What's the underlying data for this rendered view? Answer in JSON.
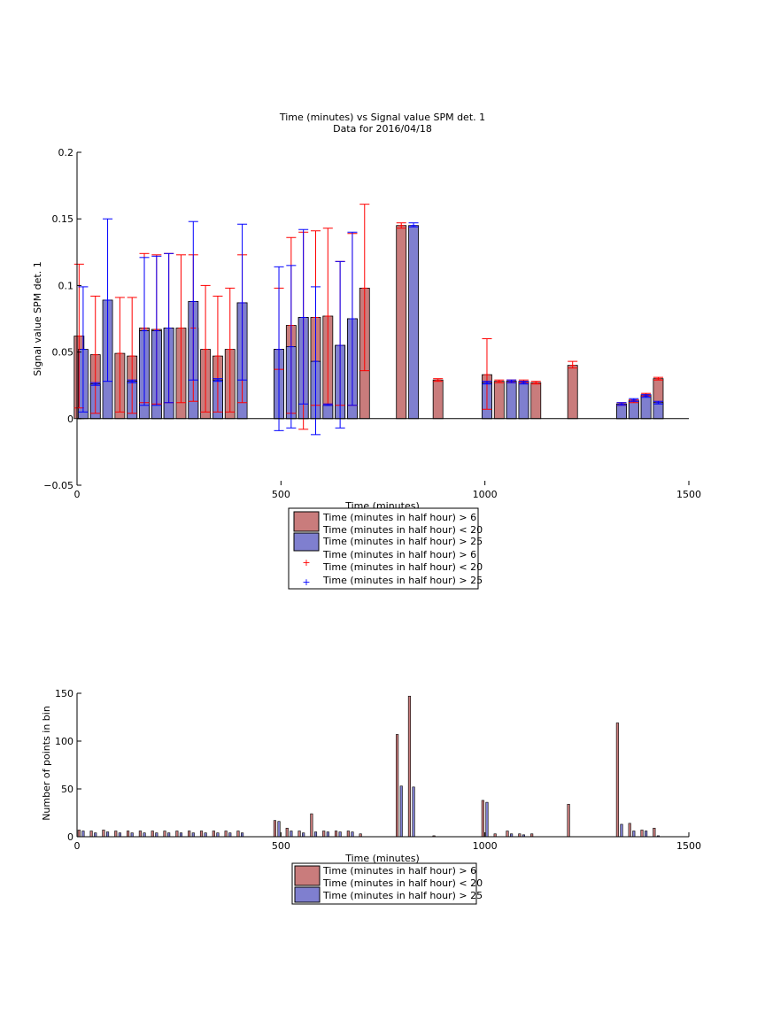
{
  "chart_data": [
    {
      "type": "bar",
      "title": "Time (minutes) vs Signal value SPM det. 1",
      "subtitle": "Data for 2016/04/18",
      "xlabel": "Time (minutes)",
      "ylabel": "Signal value SPM det. 1",
      "xlim": [
        0,
        1500
      ],
      "ylim": [
        -0.05,
        0.2
      ],
      "xticks": [
        "0",
        "500",
        "1000",
        "1500"
      ],
      "yticks": [
        "−0.05",
        "0",
        "0.05",
        "0.1",
        "0.15",
        "0.2"
      ],
      "legend_position": "below",
      "colors": {
        "red_bar": "#c97c7c",
        "blue_bar": "#7f7fcf",
        "red_err": "#ff0000",
        "blue_err": "#0000ff"
      },
      "series": [
        {
          "name": "Time (minutes in half hour) > 6\nTime (minutes in half hour) < 20",
          "color": "#c97c7c",
          "x": [
            5,
            45,
            105,
            135,
            165,
            195,
            225,
            255,
            285,
            315,
            345,
            375,
            405,
            495,
            525,
            555,
            585,
            615,
            645,
            675,
            705,
            795,
            885,
            1005,
            1035,
            1065,
            1095,
            1125,
            1215,
            1335,
            1365,
            1395,
            1425
          ],
          "values": [
            0.062,
            0.048,
            0.049,
            0.047,
            0.068,
            0.067,
            0.068,
            0.068,
            0.068,
            0.052,
            0.047,
            0.052,
            0.087,
            0.052,
            0.07,
            0.076,
            0.076,
            0.077,
            0.055,
            0.075,
            0.098,
            0.145,
            0.029,
            0.033,
            0.028,
            0.028,
            0.028,
            0.027,
            0.04,
            0.011,
            0.013,
            0.018,
            0.03
          ],
          "err_low": [
            0.008,
            0.004,
            0.005,
            0.004,
            0.012,
            0.011,
            0.012,
            0.012,
            0.013,
            0.005,
            0.005,
            0.005,
            0.012,
            0.037,
            0.004,
            -0.008,
            0.01,
            0.011,
            0.01,
            0.01,
            0.036,
            0.143,
            0.028,
            0.007,
            0.027,
            0.027,
            0.027,
            0.026,
            0.038,
            0.01,
            0.012,
            0.017,
            0.029
          ],
          "err_high": [
            0.116,
            0.092,
            0.091,
            0.091,
            0.124,
            0.123,
            0.124,
            0.123,
            0.123,
            0.1,
            0.092,
            0.098,
            0.123,
            0.098,
            0.136,
            0.14,
            0.141,
            0.143,
            0.118,
            0.139,
            0.161,
            0.147,
            0.03,
            0.06,
            0.029,
            0.029,
            0.029,
            0.028,
            0.043,
            0.012,
            0.014,
            0.019,
            0.031
          ]
        },
        {
          "name": "Time (minutes in half hour) > 25",
          "color": "#7f7fcf",
          "x": [
            15,
            45,
            75,
            135,
            165,
            195,
            225,
            285,
            345,
            405,
            495,
            525,
            555,
            585,
            615,
            645,
            675,
            825,
            1005,
            1065,
            1095,
            1335,
            1365,
            1395,
            1425
          ],
          "values": [
            0.052,
            0.026,
            0.089,
            0.028,
            0.066,
            0.066,
            0.068,
            0.088,
            0.029,
            0.087,
            0.052,
            0.054,
            0.076,
            0.043,
            0.01,
            0.055,
            0.075,
            0.145,
            0.027,
            0.028,
            0.027,
            0.011,
            0.014,
            0.017,
            0.012
          ],
          "err_low": [
            0.005,
            0.025,
            0.028,
            0.027,
            0.01,
            0.01,
            0.012,
            0.029,
            0.028,
            0.029,
            -0.009,
            -0.007,
            0.011,
            -0.012,
            0.01,
            -0.007,
            0.01,
            0.144,
            0.026,
            0.027,
            0.026,
            0.01,
            0.013,
            0.016,
            0.011
          ],
          "err_high": [
            0.099,
            0.027,
            0.15,
            0.029,
            0.121,
            0.122,
            0.124,
            0.148,
            0.03,
            0.146,
            0.114,
            0.115,
            0.142,
            0.099,
            0.011,
            0.118,
            0.14,
            0.147,
            0.028,
            0.029,
            0.028,
            0.012,
            0.015,
            0.018,
            0.013
          ]
        }
      ],
      "legend": [
        "Time (minutes in half hour) > 6",
        "Time (minutes in half hour) < 20",
        "Time (minutes in half hour) > 25",
        "Time (minutes in half hour) > 6",
        "Time (minutes in half hour) < 20",
        "Time (minutes in half hour) > 25"
      ]
    },
    {
      "type": "bar",
      "xlabel": "Time (minutes)",
      "ylabel": "Number of points in bin",
      "xlim": [
        0,
        1500
      ],
      "ylim": [
        0,
        150
      ],
      "xticks": [
        "0",
        "500",
        "1000",
        "1500"
      ],
      "yticks": [
        "0",
        "50",
        "100",
        "150"
      ],
      "legend_position": "below",
      "series": [
        {
          "name": "Time (minutes in half hour) > 6\nTime (minutes in half hour) < 20",
          "color": "#c97c7c",
          "x": [
            5,
            35,
            65,
            95,
            125,
            155,
            185,
            215,
            245,
            275,
            305,
            335,
            365,
            395,
            485,
            515,
            545,
            575,
            605,
            635,
            665,
            695,
            785,
            815,
            875,
            995,
            1025,
            1055,
            1085,
            1115,
            1205,
            1325,
            1355,
            1385,
            1415
          ],
          "values": [
            7,
            6,
            7,
            6,
            6,
            6,
            6,
            6,
            6,
            6,
            6,
            6,
            6,
            6,
            17,
            9,
            6,
            24,
            6,
            6,
            6,
            3,
            107,
            147,
            1,
            38,
            3,
            6,
            3,
            3,
            34,
            119,
            14,
            7,
            9
          ]
        },
        {
          "name": "Time (minutes in half hour) > 25",
          "color": "#7f7fcf",
          "x": [
            15,
            45,
            75,
            105,
            135,
            165,
            195,
            225,
            255,
            285,
            315,
            345,
            375,
            405,
            495,
            525,
            555,
            585,
            615,
            645,
            675,
            795,
            825,
            1005,
            1065,
            1095,
            1335,
            1365,
            1395,
            1425
          ],
          "values": [
            6,
            4,
            5,
            4,
            4,
            4,
            4,
            4,
            4,
            4,
            4,
            4,
            4,
            4,
            16,
            6,
            4,
            5,
            5,
            5,
            5,
            53,
            52,
            36,
            3,
            2,
            13,
            6,
            6,
            1
          ]
        }
      ],
      "legend": [
        "Time (minutes in half hour) > 6",
        "Time (minutes in half hour) < 20",
        "Time (minutes in half hour) > 25"
      ]
    }
  ]
}
